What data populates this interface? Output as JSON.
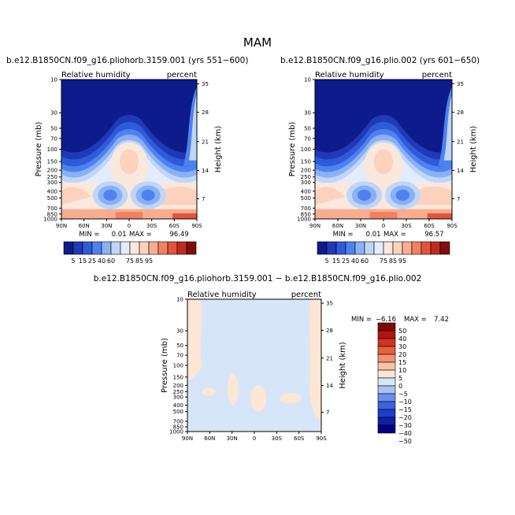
{
  "figure_title": "MAM",
  "colors": {
    "left_palette": [
      "#0d1b8c",
      "#1f3ab6",
      "#2e5bd9",
      "#4f82ee",
      "#8ab0f5",
      "#c0d6f8",
      "#e3ecfb",
      "#fbe8dc",
      "#fcd2bd",
      "#f7ad8f",
      "#ef8162",
      "#e2543b",
      "#bf2b1f",
      "#7f0e0c"
    ],
    "diff_palette": [
      "#000080",
      "#0c20a8",
      "#1d3ec8",
      "#3b63e0",
      "#6b8fec",
      "#a9c1f4",
      "#d7e5f9",
      "#fde6d3",
      "#f9c4a4",
      "#f3926d",
      "#e8603f",
      "#d3311e",
      "#b01610",
      "#7f0a08"
    ]
  },
  "chart_data": [
    {
      "type": "heatmap",
      "title": "b.e12.B1850CN.f09_g16.pliohorb.3159.001 (yrs 551−600)",
      "variable_label": "Relative humidity",
      "units_label": "percent",
      "ylabel": "Pressure (mb)",
      "ylabel_right": "Height (km)",
      "xticks": [
        "90N",
        "60N",
        "30N",
        "0",
        "30S",
        "60S",
        "90S"
      ],
      "yticks": [
        "10",
        "30",
        "50",
        "70",
        "100",
        "150",
        "200",
        "250",
        "300",
        "400",
        "500",
        "700",
        "850",
        "1000"
      ],
      "yticks_right": [
        "35",
        "28",
        "21",
        "14",
        "7"
      ],
      "stats": {
        "min_label": "MIN =",
        "min": "0.01",
        "max_label": "MAX =",
        "max": "96.49"
      },
      "colorbar_labels": [
        "5",
        "15",
        "25",
        "40",
        "60",
        "75",
        "85",
        "95"
      ]
    },
    {
      "type": "heatmap",
      "title": "b.e12.B1850CN.f09_g16.plio.002 (yrs 601−650)",
      "variable_label": "Relative humidity",
      "units_label": "percent",
      "ylabel": "Pressure (mb)",
      "ylabel_right": "Height (km)",
      "xticks": [
        "90N",
        "60N",
        "30N",
        "0",
        "30S",
        "60S",
        "90S"
      ],
      "yticks": [
        "10",
        "30",
        "50",
        "70",
        "100",
        "150",
        "200",
        "250",
        "300",
        "400",
        "500",
        "700",
        "850",
        "1000"
      ],
      "yticks_right": [
        "35",
        "28",
        "21",
        "14",
        "7"
      ],
      "stats": {
        "min_label": "MIN =",
        "min": "0.01",
        "max_label": "MAX =",
        "max": "96.57"
      },
      "colorbar_labels": [
        "5",
        "15",
        "25",
        "40",
        "60",
        "75",
        "85",
        "95"
      ]
    },
    {
      "type": "heatmap",
      "title": "b.e12.B1850CN.f09_g16.pliohorb.3159.001 − b.e12.B1850CN.f09_g16.plio.002",
      "variable_label": "Relative humidity",
      "units_label": "percent",
      "ylabel": "Pressure (mb)",
      "ylabel_right": "Height (km)",
      "xticks": [
        "90N",
        "60N",
        "30N",
        "0",
        "30S",
        "60S",
        "90S"
      ],
      "yticks": [
        "10",
        "30",
        "50",
        "70",
        "100",
        "150",
        "200",
        "250",
        "300",
        "400",
        "500",
        "700",
        "850",
        "1000"
      ],
      "yticks_right": [
        "35",
        "28",
        "21",
        "14",
        "7"
      ],
      "stats": {
        "min_label": "MIN =",
        "min": "−6.16",
        "max_label": "MAX =",
        "max": "7.42"
      },
      "colorbar_labels": [
        "50",
        "40",
        "30",
        "20",
        "15",
        "10",
        "5",
        "0",
        "−5",
        "−10",
        "−15",
        "−20",
        "−30",
        "−40",
        "−50"
      ]
    }
  ]
}
